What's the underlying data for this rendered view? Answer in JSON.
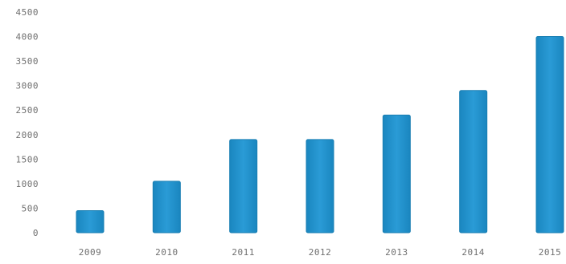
{
  "chart_data": {
    "type": "bar",
    "title": "",
    "xlabel": "",
    "ylabel": "",
    "categories": [
      "2009",
      "2010",
      "2011",
      "2012",
      "2013",
      "2014",
      "2015"
    ],
    "values": [
      450,
      1050,
      1900,
      1900,
      2400,
      2900,
      4000
    ],
    "ylim": [
      0,
      4500
    ],
    "yticks": [
      0,
      500,
      1000,
      1500,
      2000,
      2500,
      3000,
      3500,
      4000,
      4500
    ],
    "grid": false,
    "legend": "none",
    "bar_color": "#1f8fc8"
  }
}
